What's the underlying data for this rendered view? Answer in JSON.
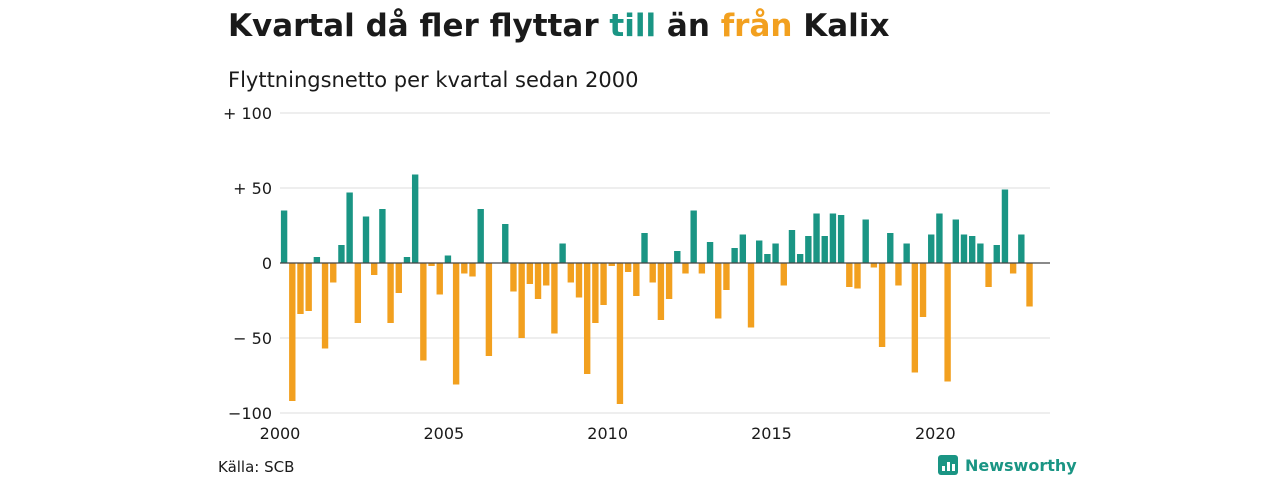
{
  "title": {
    "part1": "Kvartal då fler flyttar ",
    "till": "till",
    "part2": " än ",
    "fran": "från",
    "part3": " Kalix"
  },
  "subtitle": "Flyttningsnetto per kvartal sedan 2000",
  "source": "Källa: SCB",
  "brand": "Newsworthy",
  "colors": {
    "positive": "#1a9584",
    "negative": "#f2a01f",
    "grid": "#dddddd"
  },
  "chart_data": {
    "type": "bar",
    "ylim": [
      -100,
      100
    ],
    "xlim": [
      2000,
      2023.5
    ],
    "yticks": [
      {
        "value": 100,
        "label": "+ 100"
      },
      {
        "value": 50,
        "label": "+  50"
      },
      {
        "value": 0,
        "label": "0"
      },
      {
        "value": -50,
        "label": "− 50"
      },
      {
        "value": -100,
        "label": "−100"
      }
    ],
    "xticks": [
      {
        "value": 2000,
        "label": "2000"
      },
      {
        "value": 2005,
        "label": "2005"
      },
      {
        "value": 2010,
        "label": "2010"
      },
      {
        "value": 2015,
        "label": "2015"
      },
      {
        "value": 2020,
        "label": "2020"
      }
    ],
    "grid": true,
    "start": "2000 Q1",
    "values": [
      35,
      -92,
      -34,
      -32,
      4,
      -57,
      -13,
      12,
      47,
      -40,
      31,
      -8,
      36,
      -40,
      -20,
      4,
      59,
      -65,
      -2,
      -21,
      5,
      -81,
      -7,
      -9,
      36,
      -62,
      0,
      26,
      -19,
      -50,
      -14,
      -24,
      -15,
      -47,
      13,
      -13,
      -23,
      -74,
      -40,
      -28,
      -2,
      -94,
      -6,
      -22,
      20,
      -13,
      -38,
      -24,
      8,
      -7,
      35,
      -7,
      14,
      -37,
      -18,
      10,
      19,
      -43,
      15,
      6,
      13,
      -15,
      22,
      6,
      18,
      33,
      18,
      33,
      32,
      -16,
      -17,
      29,
      -3,
      -56,
      20,
      -15,
      13,
      -73,
      -36,
      19,
      33,
      -79,
      29,
      19,
      18,
      13,
      -16,
      12,
      49,
      -7,
      19,
      -29
    ]
  }
}
